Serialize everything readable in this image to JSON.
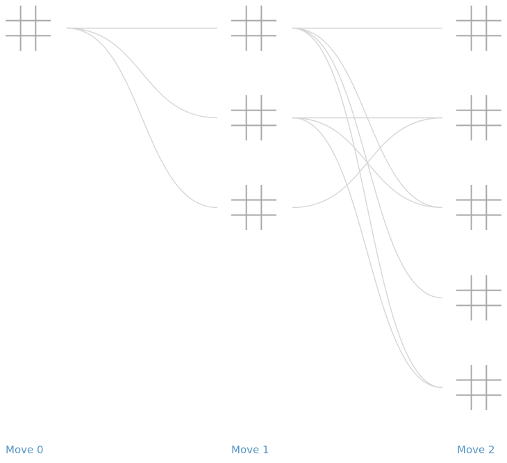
{
  "labels": [
    "Move 0",
    "Move 1",
    "Move 2"
  ],
  "columns": [
    {
      "label": "Move 0",
      "boards": 1
    },
    {
      "label": "Move 1",
      "boards": 3
    },
    {
      "label": "Move 2",
      "boards": 5
    }
  ],
  "edges": [
    {
      "from": [
        0,
        0
      ],
      "to": [
        1,
        0
      ]
    },
    {
      "from": [
        0,
        0
      ],
      "to": [
        1,
        1
      ]
    },
    {
      "from": [
        0,
        0
      ],
      "to": [
        1,
        2
      ]
    },
    {
      "from": [
        1,
        0
      ],
      "to": [
        2,
        0
      ]
    },
    {
      "from": [
        1,
        0
      ],
      "to": [
        2,
        2
      ]
    },
    {
      "from": [
        1,
        0
      ],
      "to": [
        2,
        3
      ]
    },
    {
      "from": [
        1,
        0
      ],
      "to": [
        2,
        4
      ]
    },
    {
      "from": [
        1,
        1
      ],
      "to": [
        2,
        1
      ]
    },
    {
      "from": [
        1,
        1
      ],
      "to": [
        2,
        2
      ]
    },
    {
      "from": [
        1,
        1
      ],
      "to": [
        2,
        4
      ]
    },
    {
      "from": [
        1,
        2
      ],
      "to": [
        2,
        1
      ]
    }
  ],
  "colors": {
    "grid": "#a9a9a9",
    "edge": "#d6d6d6",
    "label": "#5596c4",
    "background": "#ffffff"
  }
}
